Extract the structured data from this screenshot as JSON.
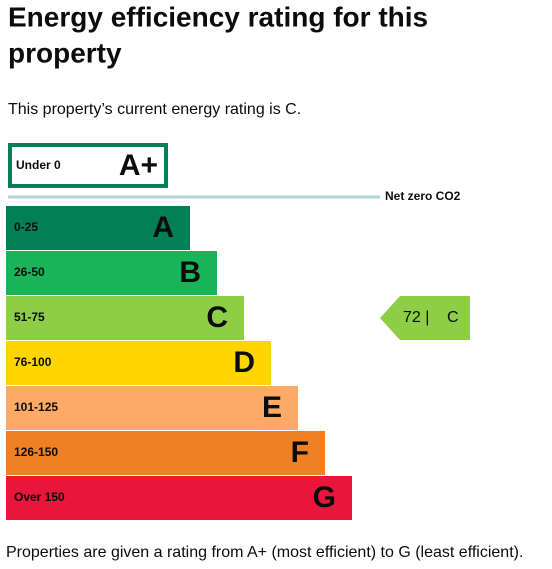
{
  "header": {
    "title_lines": [
      "Energy efficiency rating for this",
      "property"
    ]
  },
  "intro": "This property’s current energy rating is C.",
  "top_band": {
    "range": "Under 0",
    "letter": "A+",
    "color": "#008054"
  },
  "net_zero": {
    "label": "Net zero CO2",
    "color": "#b1d6dc"
  },
  "bands": [
    {
      "range": "0-25",
      "letter": "A",
      "color": "#008054"
    },
    {
      "range": "26-50",
      "letter": "B",
      "color": "#19b459"
    },
    {
      "range": "51-75",
      "letter": "C",
      "color": "#8dce46"
    },
    {
      "range": "76-100",
      "letter": "D",
      "color": "#ffd500"
    },
    {
      "range": "101-125",
      "letter": "E",
      "color": "#fcaa65"
    },
    {
      "range": "126-150",
      "letter": "F",
      "color": "#ef8023"
    },
    {
      "range": "Over 150",
      "letter": "G",
      "color": "#e9153b"
    }
  ],
  "current": {
    "value": "72 |",
    "letter": "C",
    "band_index": 2,
    "color": "#8dce46"
  },
  "footer": "Properties are given a rating from A+ (most efficient) to G (least efficient)."
}
